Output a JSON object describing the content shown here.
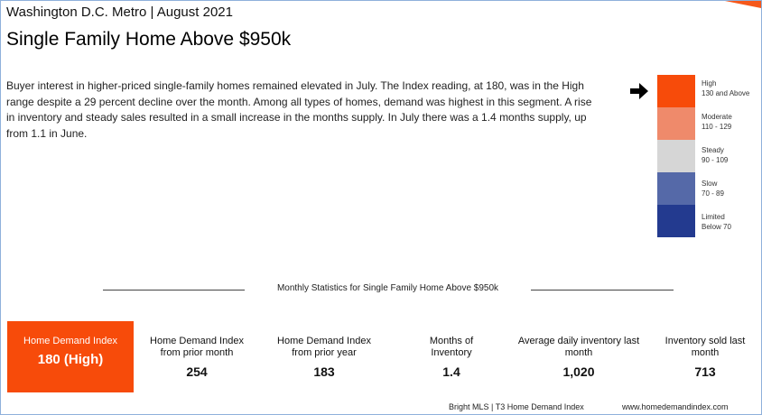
{
  "header": {
    "market": "Washington D.C. Metro | August 2021",
    "title": "Single Family Home Above $950k"
  },
  "summary": "Buyer interest in higher-priced single-family homes remained elevated in July. The Index reading, at 180, was in the High range despite a 29 percent decline over the month. Among all types of homes, demand was highest in this segment. A rise in inventory and steady sales resulted in a small increase in the months supply. In July there was a 1.4 months supply, up from 1.1 in June.",
  "scale": {
    "indicator_icon": "arrow-right-icon",
    "levels": [
      {
        "name": "High",
        "range": "130 and Above",
        "color": "#f74b0a"
      },
      {
        "name": "Moderate",
        "range": "110 - 129",
        "color": "#ef8a6b"
      },
      {
        "name": "Steady",
        "range": "90 - 109",
        "color": "#d6d6d6"
      },
      {
        "name": "Slow",
        "range": "70 - 89",
        "color": "#5569a8"
      },
      {
        "name": "Limited",
        "range": "Below 70",
        "color": "#233a8f"
      }
    ]
  },
  "stats": {
    "heading": "Monthly Statistics for Single Family Home Above $950k",
    "highlight": {
      "label": "Home Demand Index",
      "value": "180 (High)",
      "color": "#f74b0a"
    },
    "items": [
      {
        "label": "Home Demand Index from prior month",
        "value": "254"
      },
      {
        "label": "Home Demand Index from prior year",
        "value": "183"
      },
      {
        "label": "Months of Inventory",
        "value": "1.4"
      },
      {
        "label": "Average daily inventory last month",
        "value": "1,020"
      },
      {
        "label": "Inventory sold last month",
        "value": "713"
      }
    ]
  },
  "footer": {
    "source": "Bright MLS | T3 Home Demand Index",
    "url": "www.homedemandindex.com"
  }
}
